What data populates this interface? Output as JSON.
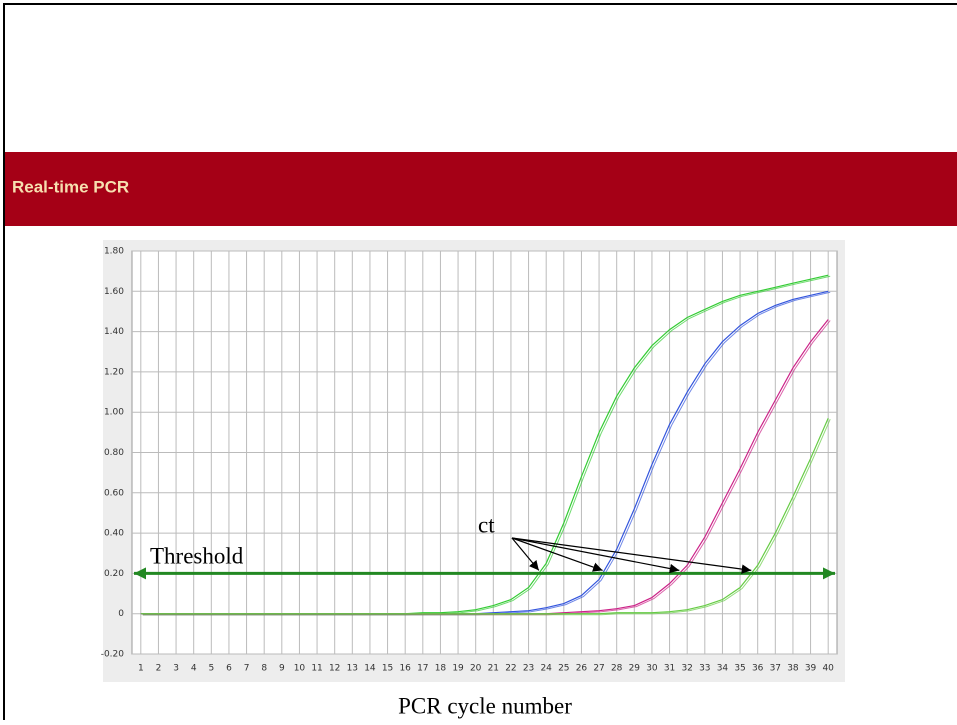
{
  "slide_title": "Real-time PCR",
  "chart_data": {
    "type": "line",
    "x": [
      1,
      2,
      3,
      4,
      5,
      6,
      7,
      8,
      9,
      10,
      11,
      12,
      13,
      14,
      15,
      16,
      17,
      18,
      19,
      20,
      21,
      22,
      23,
      24,
      25,
      26,
      27,
      28,
      29,
      30,
      31,
      32,
      33,
      34,
      35,
      36,
      37,
      38,
      39,
      40
    ],
    "xlim": [
      0.5,
      40.5
    ],
    "ylim": [
      -0.2,
      1.8
    ],
    "yticks": [
      {
        "value": -0.2,
        "label": "-0.20"
      },
      0,
      {
        "value": 0.2,
        "label": "0.20"
      },
      {
        "value": 0.4,
        "label": "0.40"
      },
      {
        "value": 0.6,
        "label": "0.60"
      },
      {
        "value": 0.8,
        "label": "0.80"
      },
      {
        "value": 1.0,
        "label": "1.00"
      },
      {
        "value": 1.2,
        "label": "1.20"
      },
      {
        "value": 1.4,
        "label": "1.40"
      },
      {
        "value": 1.6,
        "label": "1.60"
      },
      {
        "value": 1.8,
        "label": "1.80"
      }
    ],
    "grid": true,
    "x_label": "PCR cycle number",
    "threshold": 0.2,
    "threshold_label": "Threshold",
    "annotation": "ct",
    "series": [
      {
        "color": "#33cc33",
        "values": [
          0,
          0,
          0,
          0,
          0,
          0,
          0,
          0,
          0,
          0,
          0,
          0,
          0,
          0,
          0,
          0,
          0.005,
          0.005,
          0.01,
          0.02,
          0.04,
          0.07,
          0.13,
          0.25,
          0.45,
          0.68,
          0.9,
          1.08,
          1.22,
          1.33,
          1.41,
          1.47,
          1.51,
          1.55,
          1.58,
          1.6,
          1.62,
          1.64,
          1.66,
          1.68
        ]
      },
      {
        "color": "#3355dd",
        "values": [
          0,
          0,
          0,
          0,
          0,
          0,
          0,
          0,
          0,
          0,
          0,
          0,
          0,
          0,
          0,
          0,
          0,
          0,
          0,
          0,
          0.005,
          0.01,
          0.015,
          0.03,
          0.05,
          0.09,
          0.17,
          0.32,
          0.52,
          0.74,
          0.94,
          1.1,
          1.24,
          1.35,
          1.43,
          1.49,
          1.53,
          1.56,
          1.58,
          1.6
        ]
      },
      {
        "color": "#cc2288",
        "values": [
          0,
          0,
          0,
          0,
          0,
          0,
          0,
          0,
          0,
          0,
          0,
          0,
          0,
          0,
          0,
          0,
          0,
          0,
          0,
          0,
          0,
          0,
          0,
          0,
          0.005,
          0.01,
          0.015,
          0.025,
          0.04,
          0.08,
          0.15,
          0.24,
          0.38,
          0.55,
          0.72,
          0.9,
          1.06,
          1.22,
          1.35,
          1.46
        ]
      },
      {
        "color": "#66cc44",
        "values": [
          0,
          0,
          0,
          0,
          0,
          0,
          0,
          0,
          0,
          0,
          0,
          0,
          0,
          0,
          0,
          0,
          0,
          0,
          0,
          0,
          0,
          0,
          0,
          0,
          0,
          0,
          0,
          0.005,
          0.005,
          0.005,
          0.01,
          0.02,
          0.04,
          0.07,
          0.13,
          0.24,
          0.4,
          0.58,
          0.77,
          0.97
        ]
      }
    ]
  }
}
